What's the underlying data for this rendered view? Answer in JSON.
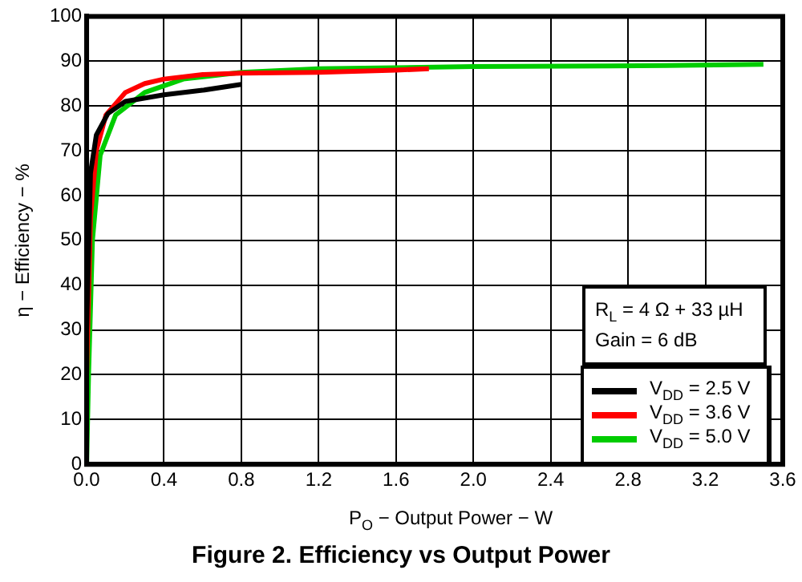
{
  "chart_data": {
    "type": "line",
    "title": "Figure 2. Efficiency vs Output Power",
    "xlabel": "P$_{O}$ − Output Power − W",
    "ylabel": "η − Efficiency − %",
    "annotations": [
      "R$_{L}$ = 4 Ω + 33 µH",
      "Gain = 6 dB"
    ],
    "xlim": [
      0,
      3.6
    ],
    "xticks": [
      {
        "value": 0,
        "label": "0.0"
      },
      0.4,
      0.8,
      1.2,
      1.6,
      {
        "value": 2,
        "label": "2.0"
      },
      2.4,
      2.8,
      3.2,
      3.6
    ],
    "ylim": [
      0,
      100
    ],
    "yticks": [
      0,
      10,
      20,
      30,
      40,
      50,
      60,
      70,
      80,
      90,
      100
    ],
    "grid": true,
    "legend": "bottom right",
    "marker": "none",
    "line_style": "solid",
    "series": [
      {
        "name": "V$_{DD}$ = 2.5 V",
        "color": "#000000",
        "x": [
          0,
          0.02,
          0.05,
          0.11,
          0.2,
          0.4,
          0.6,
          0.8
        ],
        "values": [
          30,
          65,
          73.5,
          78.3,
          81,
          82.5,
          83.5,
          84.8
        ]
      },
      {
        "name": "V$_{DD}$ = 3.6 V",
        "color": "#ff0000",
        "x": [
          0,
          0.02,
          0.05,
          0.1,
          0.2,
          0.3,
          0.4,
          0.6,
          0.8,
          1.2,
          1.6,
          1.77
        ],
        "values": [
          20,
          55,
          70,
          78,
          83,
          85,
          86,
          87,
          87.3,
          87.5,
          88,
          88.3
        ]
      },
      {
        "name": "V$_{DD}$ = 5.0 V",
        "color": "#00cc00",
        "x": [
          0,
          0.01,
          0.03,
          0.07,
          0.15,
          0.3,
          0.5,
          0.8,
          1.2,
          2.0,
          3.0,
          3.5
        ],
        "values": [
          0,
          20,
          50,
          69,
          78,
          83,
          86,
          87.5,
          88.3,
          88.8,
          89,
          89.3
        ]
      }
    ]
  }
}
